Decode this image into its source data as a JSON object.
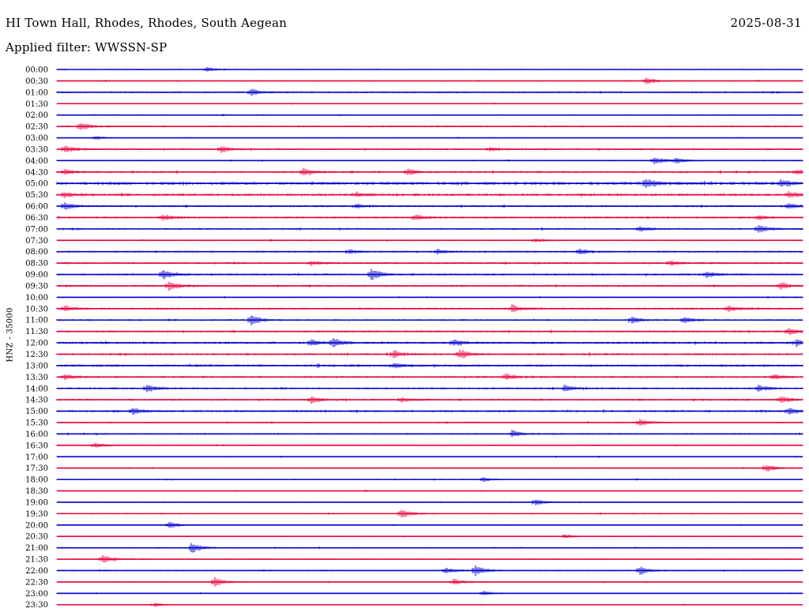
{
  "header": {
    "station": "HI Town Hall, Rhodes, Rhodes, South Aegean",
    "date": "2025-08-31",
    "filter": "Applied filter: WWSSN-SP"
  },
  "chart_data": {
    "type": "line",
    "ylabel": "HNZ - 35000",
    "rows": [
      "00:00",
      "00:30",
      "01:00",
      "01:30",
      "02:00",
      "02:30",
      "03:00",
      "03:30",
      "04:00",
      "04:30",
      "05:00",
      "05:30",
      "06:00",
      "06:30",
      "07:00",
      "07:30",
      "08:00",
      "08:30",
      "09:00",
      "09:30",
      "10:00",
      "10:30",
      "11:00",
      "11:30",
      "12:00",
      "12:30",
      "13:00",
      "13:30",
      "14:00",
      "14:30",
      "15:00",
      "15:30",
      "16:00",
      "16:30",
      "17:00",
      "17:30",
      "18:00",
      "18:30",
      "19:00",
      "19:30",
      "20:00",
      "20:30",
      "21:00",
      "21:30",
      "22:00",
      "22:30",
      "23:00",
      "23:30"
    ],
    "series_colors": [
      "#0000cc",
      "#e8003a"
    ],
    "noise_level": [
      0.6,
      0.7,
      0.9,
      0.5,
      0.6,
      0.8,
      0.5,
      0.9,
      0.7,
      1.0,
      1.6,
      1.3,
      1.0,
      1.0,
      0.9,
      0.7,
      0.9,
      1.0,
      1.0,
      1.0,
      0.6,
      1.0,
      0.9,
      1.0,
      1.2,
      1.1,
      1.2,
      1.0,
      1.0,
      1.0,
      1.1,
      0.7,
      0.8,
      0.7,
      0.6,
      0.7,
      0.6,
      0.6,
      0.6,
      0.7,
      0.6,
      0.6,
      0.6,
      0.6,
      0.7,
      0.6,
      0.6,
      0.5
    ],
    "events": [
      [
        [
          0.2,
          1.3
        ]
      ],
      [
        [
          0.79,
          1.8
        ]
      ],
      [
        [
          0.26,
          2.0
        ]
      ],
      [],
      [],
      [
        [
          0.03,
          2.5
        ]
      ],
      [
        [
          0.05,
          1.2
        ]
      ],
      [
        [
          0.01,
          2.2
        ],
        [
          0.22,
          2.0
        ],
        [
          0.58,
          1.3
        ]
      ],
      [
        [
          0.8,
          2.2
        ],
        [
          0.83,
          1.5
        ]
      ],
      [
        [
          0.01,
          1.5
        ],
        [
          0.33,
          2.5
        ],
        [
          0.47,
          2.0
        ],
        [
          0.99,
          1.6
        ]
      ],
      [
        [
          0.79,
          2.2
        ],
        [
          0.97,
          1.6
        ]
      ],
      [
        [
          0.01,
          1.3
        ],
        [
          0.4,
          1.3
        ],
        [
          0.98,
          1.8
        ]
      ],
      [
        [
          0.01,
          2.0
        ],
        [
          0.4,
          1.2
        ],
        [
          0.98,
          1.6
        ]
      ],
      [
        [
          0.14,
          2.0
        ],
        [
          0.48,
          1.6
        ],
        [
          0.94,
          1.2
        ]
      ],
      [
        [
          0.78,
          1.6
        ],
        [
          0.94,
          2.5
        ]
      ],
      [
        [
          0.64,
          1.2
        ]
      ],
      [
        [
          0.39,
          1.3
        ],
        [
          0.51,
          1.2
        ],
        [
          0.7,
          1.8
        ]
      ],
      [
        [
          0.34,
          1.3
        ],
        [
          0.82,
          1.4
        ]
      ],
      [
        [
          0.14,
          3.3
        ],
        [
          0.42,
          3.5
        ],
        [
          0.87,
          1.9
        ]
      ],
      [
        [
          0.15,
          2.8
        ],
        [
          0.97,
          2.0
        ]
      ],
      [],
      [
        [
          0.01,
          1.8
        ],
        [
          0.61,
          2.2
        ],
        [
          0.9,
          1.5
        ]
      ],
      [
        [
          0.26,
          3.0
        ],
        [
          0.77,
          1.8
        ],
        [
          0.84,
          2.0
        ]
      ],
      [
        [
          0.98,
          2.0
        ]
      ],
      [
        [
          0.34,
          2.0
        ],
        [
          0.37,
          2.2
        ],
        [
          0.53,
          2.0
        ],
        [
          0.99,
          1.8
        ]
      ],
      [
        [
          0.45,
          2.2
        ],
        [
          0.54,
          2.8
        ]
      ],
      [
        [
          0.45,
          1.4
        ]
      ],
      [
        [
          0.01,
          1.5
        ],
        [
          0.6,
          2.0
        ],
        [
          0.96,
          1.8
        ]
      ],
      [
        [
          0.12,
          2.2
        ],
        [
          0.68,
          1.8
        ],
        [
          0.94,
          1.6
        ]
      ],
      [
        [
          0.34,
          2.0
        ],
        [
          0.46,
          1.5
        ],
        [
          0.97,
          2.0
        ]
      ],
      [
        [
          0.1,
          1.8
        ],
        [
          0.98,
          2.0
        ]
      ],
      [
        [
          0.78,
          2.2
        ]
      ],
      [
        [
          0.61,
          2.0
        ]
      ],
      [
        [
          0.05,
          1.4
        ]
      ],
      [],
      [
        [
          0.95,
          2.4
        ]
      ],
      [
        [
          0.57,
          1.4
        ]
      ],
      [],
      [
        [
          0.64,
          2.0
        ]
      ],
      [
        [
          0.46,
          3.0
        ]
      ],
      [
        [
          0.15,
          2.0
        ]
      ],
      [
        [
          0.68,
          1.3
        ]
      ],
      [
        [
          0.18,
          3.2
        ]
      ],
      [
        [
          0.06,
          2.6
        ]
      ],
      [
        [
          0.52,
          1.8
        ],
        [
          0.56,
          3.3
        ],
        [
          0.78,
          2.6
        ]
      ],
      [
        [
          0.21,
          3.0
        ],
        [
          0.53,
          2.0
        ]
      ],
      [
        [
          0.57,
          1.3
        ]
      ],
      [
        [
          0.13,
          1.2
        ]
      ]
    ]
  }
}
